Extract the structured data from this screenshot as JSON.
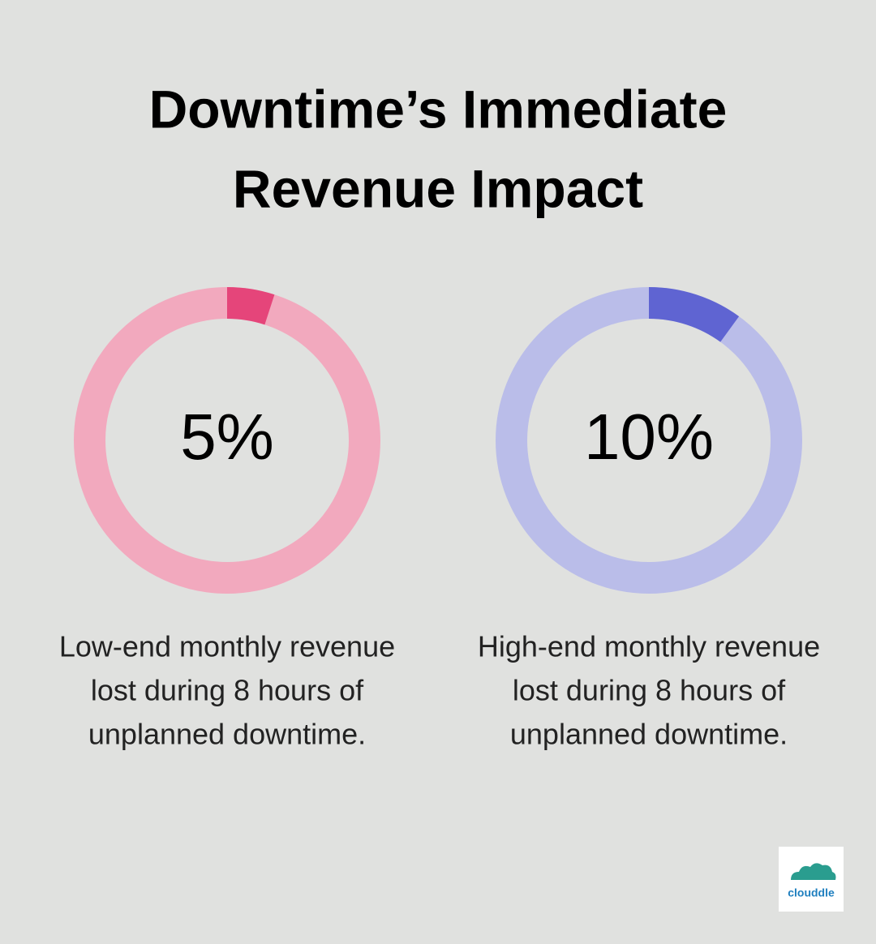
{
  "title": [
    "Downtime’s Immediate",
    "Revenue Impact"
  ],
  "chart_data": [
    {
      "type": "donut",
      "values": [
        5
      ],
      "value_labels": [
        "5%"
      ],
      "ylim": [
        0,
        100
      ],
      "caption": [
        "Low-end monthly revenue",
        "lost during 8 hours of",
        "unplanned downtime."
      ],
      "color": "#e5457a",
      "track_color": "#f2a9be"
    },
    {
      "type": "donut",
      "values": [
        10
      ],
      "value_labels": [
        "10%"
      ],
      "ylim": [
        0,
        100
      ],
      "caption": [
        "High-end monthly revenue",
        "lost during 8 hours of",
        "unplanned downtime."
      ],
      "color": "#5f64d2",
      "track_color": "#babde9"
    }
  ],
  "logo": "clouddle"
}
